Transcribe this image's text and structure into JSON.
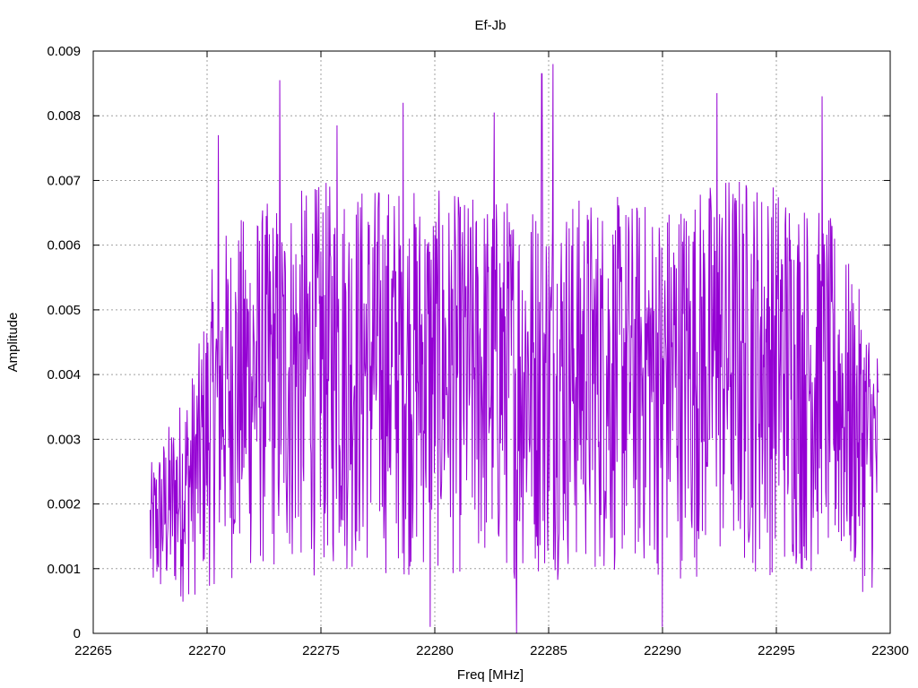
{
  "chart_data": {
    "type": "line",
    "title": "Ef-Jb",
    "xlabel": "Freq [MHz]",
    "ylabel": "Amplitude",
    "xlim": [
      22265,
      22300
    ],
    "ylim": [
      0,
      0.009
    ],
    "x_ticks": [
      "22265",
      "22270",
      "22275",
      "22280",
      "22285",
      "22290",
      "22295",
      "22300"
    ],
    "y_ticks": [
      "0",
      "0.001",
      "0.002",
      "0.003",
      "0.004",
      "0.005",
      "0.006",
      "0.007",
      "0.008",
      "0.009"
    ],
    "grid": true,
    "legend": "none",
    "series": [
      {
        "color": "#9400d3",
        "x_range": [
          22267.5,
          22299.5
        ],
        "envelope_x": [
          22267.5,
          22269.5,
          22270.5,
          22272,
          22275,
          22278,
          22281,
          22284,
          22287,
          22290,
          22293,
          22295.5,
          22297.5,
          22299.5
        ],
        "envelope_max": [
          0.0026,
          0.0042,
          0.0062,
          0.0066,
          0.007,
          0.007,
          0.0068,
          0.0068,
          0.0068,
          0.0067,
          0.0072,
          0.007,
          0.0064,
          0.0045
        ],
        "peaks": [
          {
            "x": 22270.5,
            "y": 0.0077
          },
          {
            "x": 22273.2,
            "y": 0.00855
          },
          {
            "x": 22275.7,
            "y": 0.00785
          },
          {
            "x": 22278.6,
            "y": 0.0082
          },
          {
            "x": 22282.6,
            "y": 0.00805
          },
          {
            "x": 22284.7,
            "y": 0.00865
          },
          {
            "x": 22285.2,
            "y": 0.0088
          },
          {
            "x": 22292.4,
            "y": 0.00835
          },
          {
            "x": 22297.0,
            "y": 0.0083
          }
        ],
        "dips": [
          {
            "x": 22279.8,
            "y": 0.0001
          },
          {
            "x": 22283.6,
            "y": 0.0
          },
          {
            "x": 22290.0,
            "y": 0.0001
          }
        ]
      }
    ]
  }
}
